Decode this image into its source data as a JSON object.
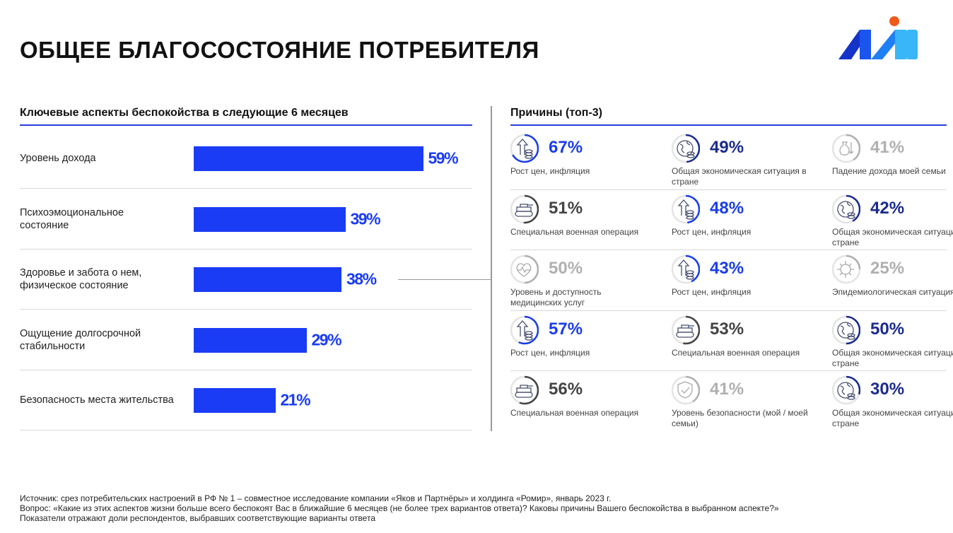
{
  "title": "ОБЩЕЕ БЛАГОСОСТОЯНИЕ ПОТРЕБИТЕЛЯ",
  "left_title": "Ключевые аспекты беспокойства в следующие 6 месяцев",
  "right_title": "Причины (топ-3)",
  "colors": {
    "bar": "#1a3cf5",
    "blue": "#1a3ee8",
    "navy": "#1b2b8c",
    "gray": "#b0b0b0",
    "dark": "#444444"
  },
  "chart_data": {
    "type": "bar",
    "orientation": "horizontal",
    "categories": [
      "Уровень дохода",
      "Психоэмоциональное состояние",
      "Здоровье и забота о нем, физическое состояние",
      "Ощущение долгосрочной стабильности",
      "Безопасность места жительства"
    ],
    "values": [
      59,
      39,
      38,
      29,
      21
    ],
    "labels": [
      "59%",
      "39%",
      "38%",
      "29%",
      "21%"
    ]
  },
  "reasons": [
    [
      {
        "value": "67%",
        "pct": 67,
        "label": "Рост цен, инфляция",
        "icon": "price-growth-icon",
        "tone": "blue"
      },
      {
        "value": "49%",
        "pct": 49,
        "label": "Общая экономическая ситуация в стране",
        "icon": "globe-coins-icon",
        "tone": "navy"
      },
      {
        "value": "41%",
        "pct": 41,
        "label": "Падение дохода моей семьи",
        "icon": "money-bag-down-icon",
        "tone": "gray"
      }
    ],
    [
      {
        "value": "51%",
        "pct": 51,
        "label": "Специальная военная операция",
        "icon": "tank-icon",
        "tone": "dark"
      },
      {
        "value": "48%",
        "pct": 48,
        "label": "Рост цен, инфляция",
        "icon": "price-growth-icon",
        "tone": "blue"
      },
      {
        "value": "42%",
        "pct": 42,
        "label": "Общая экономическая ситуация в стране",
        "icon": "globe-coins-icon",
        "tone": "navy"
      }
    ],
    [
      {
        "value": "50%",
        "pct": 50,
        "label": "Уровень и доступность медицинских услуг",
        "icon": "heart-pulse-icon",
        "tone": "gray"
      },
      {
        "value": "43%",
        "pct": 43,
        "label": "Рост цен, инфляция",
        "icon": "price-growth-icon",
        "tone": "blue"
      },
      {
        "value": "25%",
        "pct": 25,
        "label": "Эпидемиологическая ситуация",
        "icon": "virus-icon",
        "tone": "gray"
      }
    ],
    [
      {
        "value": "57%",
        "pct": 57,
        "label": "Рост цен, инфляция",
        "icon": "price-growth-icon",
        "tone": "blue"
      },
      {
        "value": "53%",
        "pct": 53,
        "label": "Специальная военная операция",
        "icon": "tank-icon",
        "tone": "dark"
      },
      {
        "value": "50%",
        "pct": 50,
        "label": "Общая экономическая ситуация в стране",
        "icon": "globe-coins-icon",
        "tone": "navy"
      }
    ],
    [
      {
        "value": "56%",
        "pct": 56,
        "label": "Специальная военная операция",
        "icon": "tank-icon",
        "tone": "dark"
      },
      {
        "value": "41%",
        "pct": 41,
        "label": "Уровень безопасности (мой / моей семьи)",
        "icon": "shield-check-icon",
        "tone": "gray"
      },
      {
        "value": "30%",
        "pct": 30,
        "label": "Общая экономическая ситуация в стране",
        "icon": "globe-coins-icon",
        "tone": "navy"
      }
    ]
  ],
  "footer": [
    "Источник: срез потребительских настроений в РФ № 1 – совместное исследование компании «Яков и Партнёры» и холдинга «Ромир», январь 2023 г.",
    "Вопрос: «Какие из этих аспектов жизни больше всего беспокоят Вас в ближайшие 6 месяцев (не более трех вариантов ответа)? Каковы причины Вашего беспокойства в выбранном аспекте?»",
    "Показатели отражают доли респондентов, выбравших соответствующие варианты ответа"
  ]
}
